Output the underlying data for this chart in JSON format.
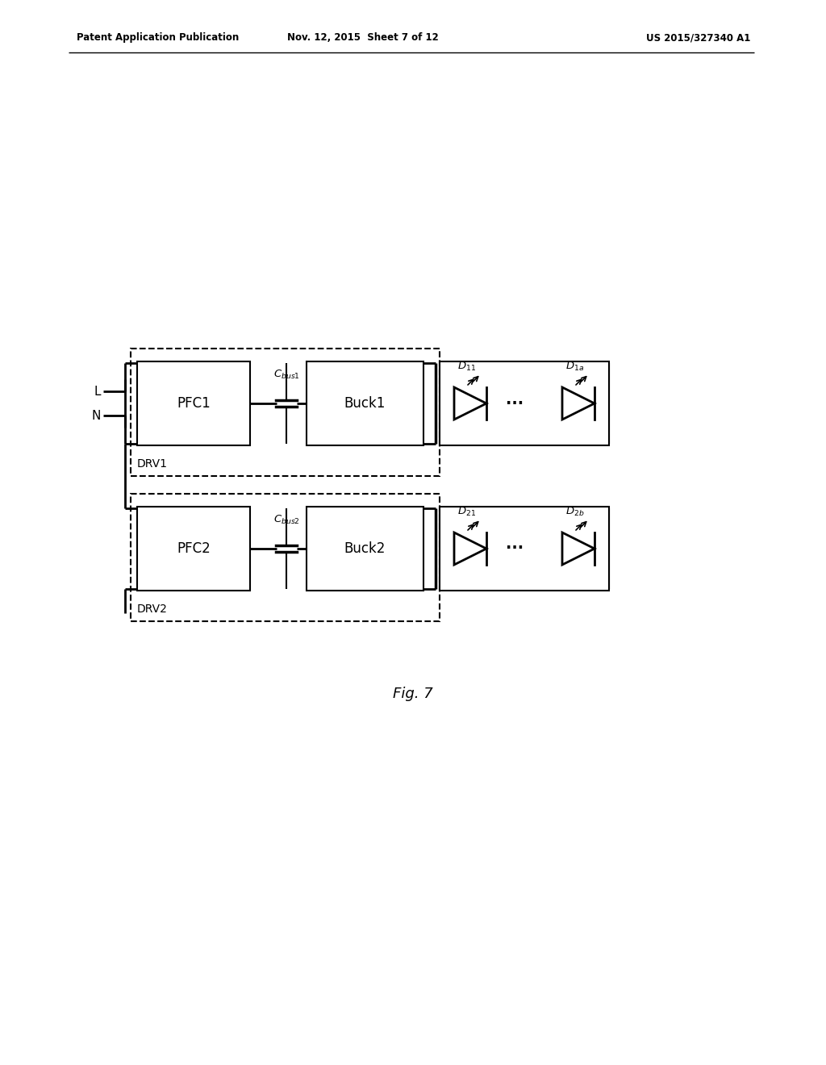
{
  "bg_color": "#ffffff",
  "line_color": "#000000",
  "header_left": "Patent Application Publication",
  "header_center": "Nov. 12, 2015  Sheet 7 of 12",
  "header_right": "US 2015/327340 A1",
  "fig_label": "Fig. 7",
  "circuit": {
    "top_channel": {
      "pfc_label": "PFC1",
      "buck_label": "Buck1",
      "cap_label": "C_bus1",
      "drv_label": "DRV1",
      "d1_label": "D_11",
      "d2_label": "D_1a"
    },
    "bot_channel": {
      "pfc_label": "PFC2",
      "buck_label": "Buck2",
      "cap_label": "C_bus2",
      "drv_label": "DRV2",
      "d1_label": "D_21",
      "d2_label": "D_2b"
    }
  }
}
